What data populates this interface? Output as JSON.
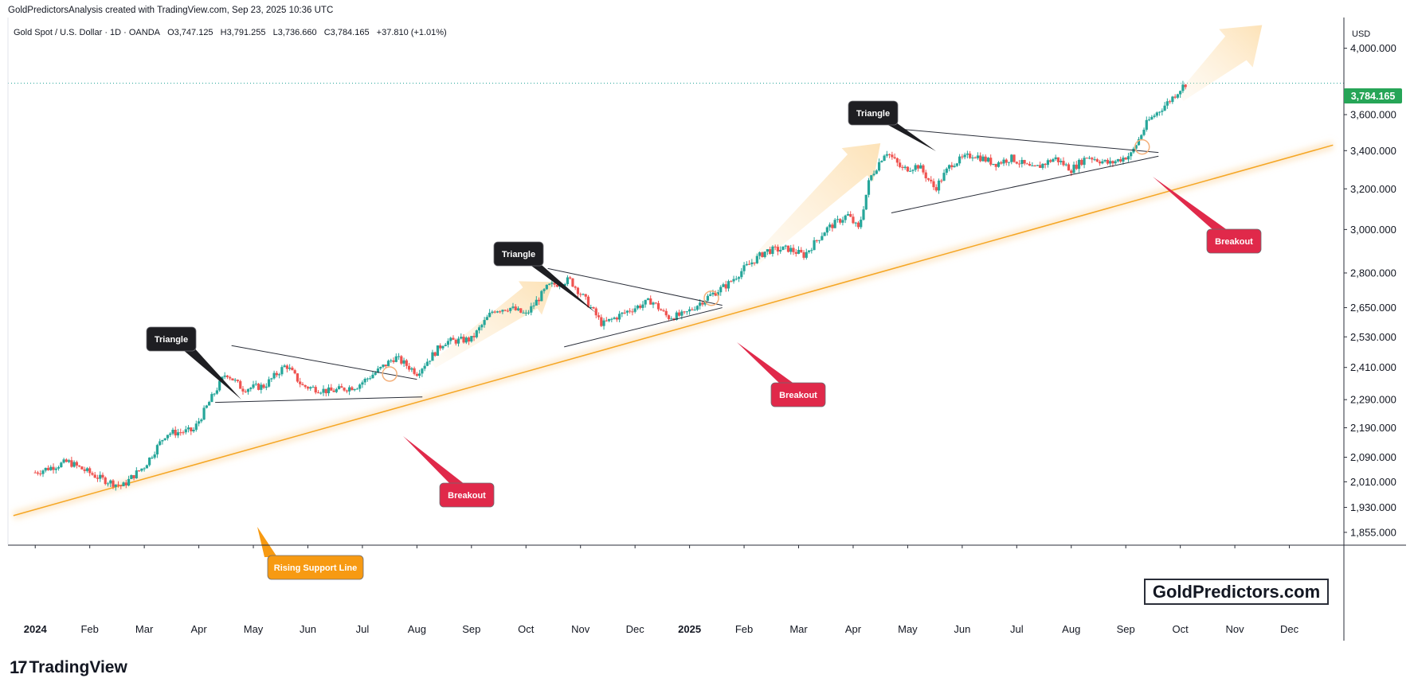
{
  "header": {
    "credit": "GoldPredictorsAnalysis created with TradingView.com, Sep 23, 2025 10:36 UTC"
  },
  "symbol": {
    "name": "Gold Spot / U.S. Dollar · 1D · OANDA",
    "open": "O3,747.125",
    "high": "H3,791.255",
    "low": "L3,736.660",
    "close": "C3,784.165",
    "change": "+37.810 (+1.01%)"
  },
  "colors": {
    "up": "#26a69a",
    "down": "#ef5350",
    "accent_orange": "#f5a623",
    "callout_dark": "#1e1e22",
    "callout_red": "#e0294a",
    "callout_orange": "#f79a12",
    "price_tag": "#26a557"
  },
  "axis": {
    "currency": "USD",
    "current_price": "3,784.165"
  },
  "watermark": "GoldPredictors.com",
  "branding": "TradingView",
  "annotations": {
    "triangle_1": "Triangle",
    "triangle_2": "Triangle",
    "triangle_3": "Triangle",
    "breakout_1": "Breakout",
    "breakout_2": "Breakout",
    "breakout_3": "Breakout",
    "support": "Rising Support Line"
  },
  "chart_data": {
    "type": "candlestick",
    "title": "Gold Spot / U.S. Dollar · 1D · OANDA",
    "y_scale": "log",
    "ylim": [
      1820,
      4200
    ],
    "y_ticks": [
      1855,
      1930,
      2010,
      2090,
      2190,
      2290,
      2410,
      2530,
      2650,
      2800,
      3000,
      3200,
      3400,
      3600,
      4000
    ],
    "y_tick_labels": [
      "1,855.000",
      "1,930.000",
      "2,010.000",
      "2,090.000",
      "2,190.000",
      "2,290.000",
      "2,410.000",
      "2,530.000",
      "2,650.000",
      "2,800.000",
      "3,000.000",
      "3,200.000",
      "3,400.000",
      "3,600.000",
      "4,000.000"
    ],
    "x_ticks": [
      "2024",
      "Feb",
      "Mar",
      "Apr",
      "May",
      "Jun",
      "Jul",
      "Aug",
      "Sep",
      "Oct",
      "Nov",
      "Dec",
      "2025",
      "Feb",
      "Mar",
      "Apr",
      "May",
      "Jun",
      "Jul",
      "Aug",
      "Sep",
      "Oct",
      "Nov",
      "Dec"
    ],
    "x_tick_months": [
      0,
      1,
      2,
      3,
      4,
      5,
      6,
      7,
      8,
      9,
      10,
      11,
      12,
      13,
      14,
      15,
      16,
      17,
      18,
      19,
      20,
      21,
      22,
      23
    ],
    "x_range_months": [
      -0.5,
      24.0
    ],
    "path_anchors": [
      [
        0.0,
        2040
      ],
      [
        0.6,
        2075
      ],
      [
        1.2,
        2020
      ],
      [
        1.6,
        1995
      ],
      [
        1.8,
        2030
      ],
      [
        2.0,
        2060
      ],
      [
        2.4,
        2170
      ],
      [
        2.9,
        2180
      ],
      [
        3.3,
        2320
      ],
      [
        3.5,
        2390
      ],
      [
        3.8,
        2330
      ],
      [
        4.2,
        2340
      ],
      [
        4.6,
        2420
      ],
      [
        4.9,
        2340
      ],
      [
        5.4,
        2320
      ],
      [
        5.9,
        2340
      ],
      [
        6.3,
        2400
      ],
      [
        6.6,
        2450
      ],
      [
        7.0,
        2390
      ],
      [
        7.5,
        2510
      ],
      [
        8.0,
        2520
      ],
      [
        8.4,
        2640
      ],
      [
        8.7,
        2650
      ],
      [
        9.0,
        2620
      ],
      [
        9.4,
        2740
      ],
      [
        9.8,
        2770
      ],
      [
        10.1,
        2680
      ],
      [
        10.4,
        2580
      ],
      [
        10.9,
        2640
      ],
      [
        11.3,
        2680
      ],
      [
        11.6,
        2610
      ],
      [
        11.9,
        2620
      ],
      [
        12.3,
        2690
      ],
      [
        12.7,
        2750
      ],
      [
        13.0,
        2820
      ],
      [
        13.4,
        2900
      ],
      [
        13.8,
        2910
      ],
      [
        14.1,
        2880
      ],
      [
        14.5,
        3000
      ],
      [
        14.9,
        3070
      ],
      [
        15.1,
        3000
      ],
      [
        15.3,
        3250
      ],
      [
        15.6,
        3400
      ],
      [
        15.9,
        3300
      ],
      [
        16.2,
        3320
      ],
      [
        16.5,
        3200
      ],
      [
        16.8,
        3330
      ],
      [
        17.2,
        3380
      ],
      [
        17.6,
        3330
      ],
      [
        17.9,
        3360
      ],
      [
        18.3,
        3300
      ],
      [
        18.7,
        3360
      ],
      [
        19.0,
        3300
      ],
      [
        19.3,
        3370
      ],
      [
        19.7,
        3330
      ],
      [
        20.1,
        3380
      ],
      [
        20.4,
        3560
      ],
      [
        20.8,
        3680
      ],
      [
        21.0,
        3750
      ],
      [
        21.1,
        3784
      ]
    ],
    "support_line": {
      "start": [
        -0.4,
        1905
      ],
      "end": [
        23.8,
        3430
      ],
      "label": "Rising Support Line"
    },
    "triangles": [
      {
        "label": "Triangle",
        "upper": [
          [
            3.6,
            2495
          ],
          [
            7.0,
            2365
          ]
        ],
        "lower": [
          [
            3.3,
            2280
          ],
          [
            7.1,
            2300
          ]
        ],
        "breakout": [
          6.5,
          2385
        ]
      },
      {
        "label": "Triangle",
        "upper": [
          [
            9.4,
            2820
          ],
          [
            12.6,
            2660
          ]
        ],
        "lower": [
          [
            9.7,
            2490
          ],
          [
            12.6,
            2650
          ]
        ],
        "breakout": [
          12.4,
          2690
        ]
      },
      {
        "label": "Triangle",
        "upper": [
          [
            15.8,
            3520
          ],
          [
            20.6,
            3390
          ]
        ],
        "lower": [
          [
            15.7,
            3080
          ],
          [
            20.6,
            3370
          ]
        ],
        "breakout": [
          20.3,
          3420
        ]
      }
    ],
    "current_price": 3784.165
  }
}
